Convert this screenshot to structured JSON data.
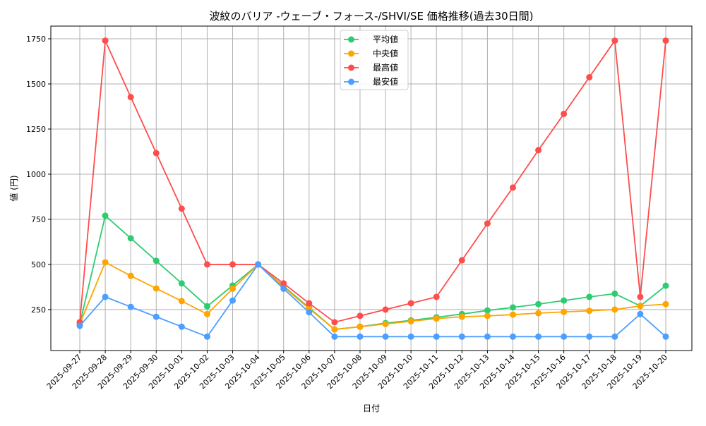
{
  "chart_data": {
    "type": "line",
    "title": "波紋のバリア -ウェーブ・フォース-/SHVI/SE 価格推移(過去30日間)",
    "xlabel": "日付",
    "ylabel": "値 (円)",
    "ylim": [
      23,
      1879
    ],
    "yticks": [
      250,
      500,
      750,
      1000,
      1250,
      1500,
      1750
    ],
    "grid": true,
    "legend_position": "top-center",
    "x": [
      "2025-09-27",
      "2025-09-28",
      "2025-09-29",
      "2025-09-30",
      "2025-10-01",
      "2025-10-02",
      "2025-10-03",
      "2025-10-04",
      "2025-10-05",
      "2025-10-06",
      "2025-10-07",
      "2025-10-08",
      "2025-10-09",
      "2025-10-10",
      "2025-10-11",
      "2025-10-12",
      "2025-10-13",
      "2025-10-14",
      "2025-10-15",
      "2025-10-16",
      "2025-10-17",
      "2025-10-18",
      "2025-10-19",
      "2025-10-20"
    ],
    "series": [
      {
        "name": "平均値",
        "color": "#2ecc71",
        "values": [
          170,
          770,
          645,
          520,
          395,
          268,
          383,
          500,
          380,
          260,
          140,
          155,
          175,
          190,
          207,
          225,
          245,
          262,
          280,
          300,
          320,
          338,
          270,
          382
        ]
      },
      {
        "name": "中央値",
        "color": "#ffa500",
        "values": [
          170,
          512,
          437,
          367,
          297,
          225,
          365,
          500,
          375,
          255,
          140,
          155,
          170,
          185,
          200,
          210,
          215,
          222,
          230,
          237,
          243,
          250,
          270,
          280
        ]
      },
      {
        "name": "最高値",
        "color": "#ff4d4d",
        "values": [
          180,
          1740,
          1427,
          1117,
          809,
          500,
          500,
          500,
          395,
          285,
          180,
          215,
          250,
          285,
          320,
          523,
          727,
          926,
          1133,
          1334,
          1537,
          1740,
          320,
          1740
        ]
      },
      {
        "name": "最安値",
        "color": "#4d9fff",
        "values": [
          160,
          320,
          265,
          210,
          155,
          100,
          300,
          500,
          365,
          235,
          100,
          100,
          100,
          100,
          100,
          100,
          100,
          100,
          100,
          100,
          100,
          100,
          225,
          100
        ]
      }
    ]
  }
}
